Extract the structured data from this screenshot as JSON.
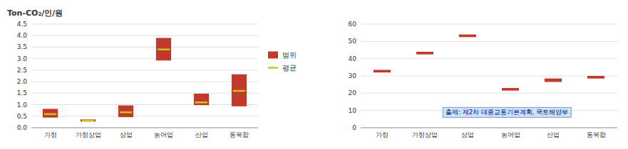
{
  "chart_data": [
    {
      "type": "bar",
      "title": "Ton-CO₂/인/원",
      "categories": [
        "가정",
        "가정상업",
        "상업",
        "농어업",
        "산업",
        "통복합"
      ],
      "series": [
        {
          "name": "범위",
          "type": "range",
          "color": "#c0392b",
          "low": [
            0.44,
            0.27,
            0.46,
            2.92,
            0.98,
            0.93
          ],
          "high": [
            0.82,
            0.36,
            0.97,
            3.9,
            1.48,
            2.32
          ]
        },
        {
          "name": "평균",
          "type": "dash",
          "color": "#c8c820",
          "values": [
            0.59,
            0.31,
            0.67,
            3.4,
            1.1,
            1.6
          ]
        }
      ],
      "ylim": [
        0,
        4.5
      ],
      "yticks": [
        {
          "value": 0,
          "label": "0.0"
        },
        0.5,
        {
          "value": 1.0,
          "label": "1.0"
        },
        1.5,
        {
          "value": 2.0,
          "label": "2.0"
        },
        2.5,
        {
          "value": 3.0,
          "label": "3.0"
        },
        3.5,
        {
          "value": 4.0,
          "label": "4.0"
        },
        4.5
      ],
      "grid": true,
      "legend": "right"
    },
    {
      "type": "bar",
      "categories": [
        "가정",
        "가정상업",
        "상업",
        "농어업",
        "산업",
        "통복합"
      ],
      "series": [
        {
          "type": "range",
          "color": "#c0392b",
          "low": [
            32.0,
            42.5,
            52.5,
            21.5,
            26.5,
            28.5
          ],
          "high": [
            33.5,
            44.0,
            54.0,
            23.0,
            28.5,
            30.0
          ]
        }
      ],
      "ylim": [
        0,
        60
      ],
      "yticks": [
        0,
        10,
        20,
        30,
        40,
        50,
        60
      ],
      "grid": true,
      "annotation": "출제: 제2차 대중교통기본계획, 국토해양부"
    }
  ]
}
